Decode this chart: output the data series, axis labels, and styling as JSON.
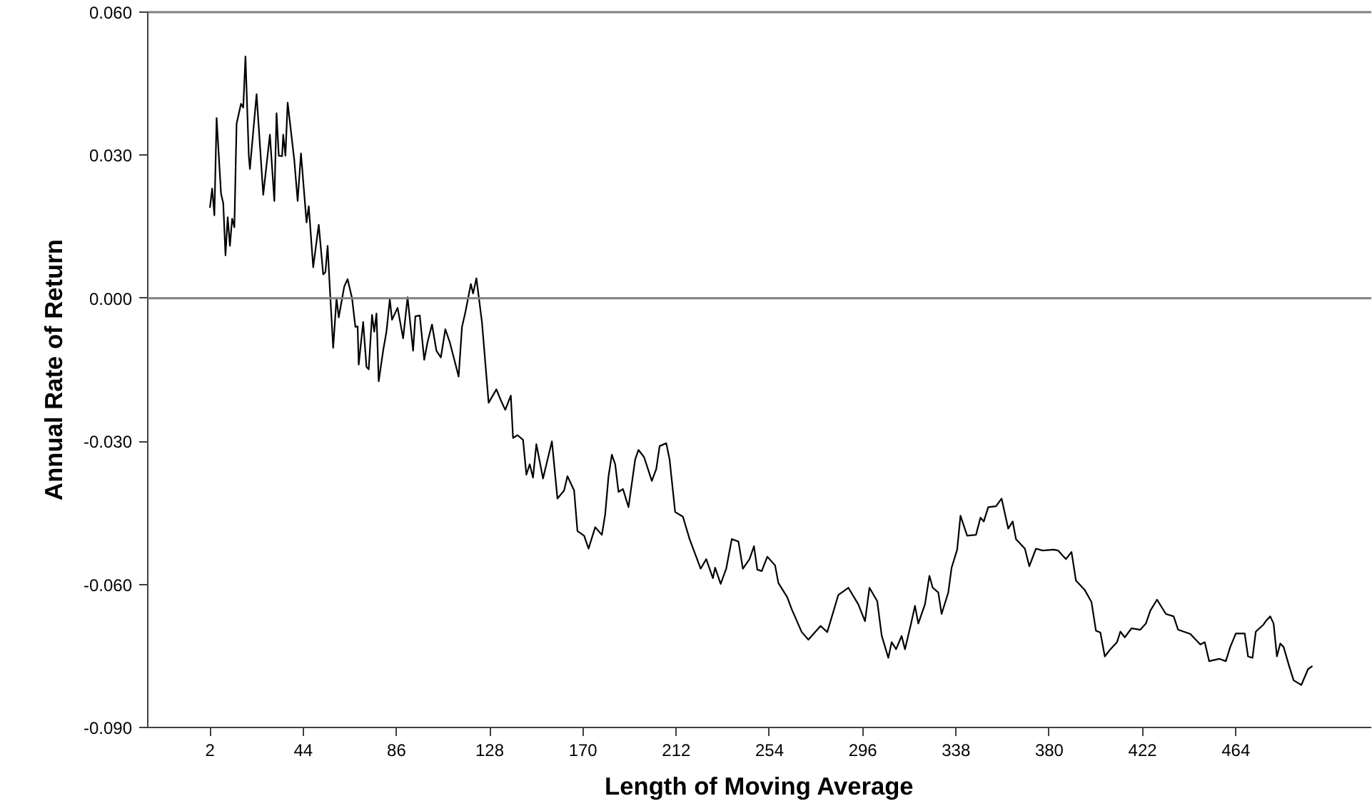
{
  "chart_data": {
    "type": "line",
    "xlabel": "Length of Moving Average",
    "ylabel": "Annual Rate of Return",
    "x": [
      2,
      3,
      4,
      5,
      7,
      8,
      9,
      10,
      11,
      12,
      13,
      14,
      16,
      17,
      18,
      19.5,
      20,
      23,
      26,
      29,
      31,
      32,
      33,
      34.5,
      35,
      36,
      37,
      40,
      41.5,
      43,
      45.5,
      46.5,
      48.5,
      51,
      53,
      54,
      55,
      56,
      57.5,
      59,
      60,
      62.5,
      64,
      66,
      67.5,
      68.5,
      69,
      71,
      72.5,
      73.5,
      75,
      76,
      77,
      78,
      80,
      81.5,
      83,
      84,
      86.5,
      89,
      91,
      93.5,
      94.5,
      96.5,
      98.5,
      100,
      102,
      104,
      106,
      108,
      110,
      114,
      115.5,
      117,
      119.5,
      120.5,
      122,
      124.5,
      127.5,
      131,
      133,
      135,
      137.5,
      138.5,
      140.5,
      143,
      144.5,
      146,
      147.5,
      149,
      152,
      156,
      158.5,
      161.5,
      163,
      166,
      167.5,
      170.5,
      172.5,
      175.5,
      178.5,
      180,
      181.5,
      183,
      184.5,
      186,
      188,
      190.5,
      193.5,
      195,
      197.5,
      201,
      203,
      204.5,
      207.5,
      209,
      211.5,
      215,
      218,
      223,
      225.5,
      228.5,
      229.5,
      232,
      234.5,
      237,
      240,
      242,
      245,
      247,
      248.5,
      250.5,
      253,
      256.5,
      258,
      262,
      264,
      268.5,
      271.5,
      277,
      280,
      285,
      289.5,
      294,
      297,
      299,
      302.5,
      304.5,
      307.5,
      309,
      311,
      313.5,
      315,
      317.5,
      319.5,
      321,
      324,
      326,
      327.5,
      330,
      331.5,
      334.5,
      336,
      338.5,
      340,
      343,
      347,
      349,
      350.5,
      352.5,
      356,
      358.5,
      361.5,
      363.5,
      365,
      369,
      371,
      374,
      377,
      382,
      384,
      387.5,
      390,
      392,
      396,
      399,
      401,
      403,
      405,
      407.5,
      410.5,
      412,
      414,
      417,
      421,
      423.5,
      425.5,
      428.5,
      432.5,
      436,
      438,
      443.5,
      448,
      450,
      452,
      456.5,
      459.5,
      461.5,
      464,
      468,
      469.5,
      471.5,
      473,
      476.5,
      477.5,
      479.5,
      481,
      482.5,
      484,
      485.5,
      488,
      490,
      493.5,
      496.5,
      498.5
    ],
    "values": [
      0.019,
      0.023,
      0.0174,
      0.0378,
      0.0219,
      0.0199,
      0.009,
      0.017,
      0.011,
      0.0167,
      0.0149,
      0.0366,
      0.0408,
      0.04,
      0.0507,
      0.0299,
      0.0271,
      0.0428,
      0.0217,
      0.0343,
      0.0204,
      0.0388,
      0.0299,
      0.0298,
      0.0343,
      0.0299,
      0.041,
      0.0289,
      0.0204,
      0.0304,
      0.0159,
      0.0193,
      0.0065,
      0.0154,
      0.005,
      0.0055,
      0.011,
      0.002,
      -0.0104,
      0.0,
      -0.004,
      0.0025,
      0.004,
      0.0,
      -0.006,
      -0.0059,
      -0.0139,
      -0.005,
      -0.0144,
      -0.0149,
      -0.0035,
      -0.007,
      -0.0032,
      -0.0174,
      -0.011,
      -0.007,
      -0.0002,
      -0.0045,
      -0.002,
      -0.0084,
      0.0002,
      -0.011,
      -0.0038,
      -0.0036,
      -0.0129,
      -0.0092,
      -0.0055,
      -0.011,
      -0.0124,
      -0.0065,
      -0.0092,
      -0.0164,
      -0.006,
      -0.003,
      0.003,
      0.001,
      0.0042,
      -0.005,
      -0.0219,
      -0.0191,
      -0.0214,
      -0.0234,
      -0.0204,
      -0.0293,
      -0.0287,
      -0.0297,
      -0.037,
      -0.0348,
      -0.0376,
      -0.0306,
      -0.0378,
      -0.03,
      -0.042,
      -0.0403,
      -0.0373,
      -0.0403,
      -0.0488,
      -0.0498,
      -0.0525,
      -0.048,
      -0.0496,
      -0.0453,
      -0.0373,
      -0.0328,
      -0.0348,
      -0.0406,
      -0.04,
      -0.0438,
      -0.0338,
      -0.0318,
      -0.0333,
      -0.0383,
      -0.0358,
      -0.031,
      -0.0304,
      -0.0338,
      -0.0448,
      -0.0458,
      -0.0505,
      -0.0567,
      -0.0547,
      -0.0587,
      -0.0565,
      -0.0599,
      -0.0567,
      -0.0505,
      -0.051,
      -0.0567,
      -0.0547,
      -0.052,
      -0.0569,
      -0.0572,
      -0.0542,
      -0.056,
      -0.0597,
      -0.0627,
      -0.0652,
      -0.07,
      -0.0716,
      -0.0687,
      -0.07,
      -0.0622,
      -0.0607,
      -0.0642,
      -0.0677,
      -0.0607,
      -0.0635,
      -0.0707,
      -0.0754,
      -0.0721,
      -0.0736,
      -0.0708,
      -0.0736,
      -0.0687,
      -0.0645,
      -0.0682,
      -0.0642,
      -0.0582,
      -0.0607,
      -0.0617,
      -0.0662,
      -0.0617,
      -0.0565,
      -0.0527,
      -0.0456,
      -0.0498,
      -0.0496,
      -0.046,
      -0.0468,
      -0.0438,
      -0.0436,
      -0.042,
      -0.0483,
      -0.0468,
      -0.0505,
      -0.0525,
      -0.0562,
      -0.0525,
      -0.0529,
      -0.0527,
      -0.0529,
      -0.0547,
      -0.0532,
      -0.0592,
      -0.0612,
      -0.0637,
      -0.0697,
      -0.0701,
      -0.0751,
      -0.0736,
      -0.0721,
      -0.0699,
      -0.0711,
      -0.0692,
      -0.0695,
      -0.0682,
      -0.0655,
      -0.0632,
      -0.0662,
      -0.0667,
      -0.0695,
      -0.0704,
      -0.0726,
      -0.0721,
      -0.0761,
      -0.0756,
      -0.0761,
      -0.0731,
      -0.0703,
      -0.0703,
      -0.0751,
      -0.0754,
      -0.0699,
      -0.0684,
      -0.0677,
      -0.0667,
      -0.0682,
      -0.0751,
      -0.0724,
      -0.0731,
      -0.0771,
      -0.0801,
      -0.0811,
      -0.0778,
      -0.0771
    ],
    "color": "#000000",
    "line_style": "solid",
    "marker": "none",
    "grid": false,
    "xlim": [
      -26,
      525
    ],
    "xticks": [
      2,
      44,
      86,
      128,
      170,
      212,
      254,
      296,
      338,
      380,
      422,
      464
    ],
    "ylim": [
      -0.09,
      0.06
    ],
    "yticks": [
      {
        "value": -0.09,
        "label": "-0.090"
      },
      {
        "value": -0.06,
        "label": "-0.060"
      },
      {
        "value": -0.03,
        "label": "-0.030"
      },
      {
        "value": 0,
        "label": "0.000"
      },
      {
        "value": 0.03,
        "label": "0.030"
      },
      {
        "value": 0.06,
        "label": "0.060"
      }
    ],
    "ref_lines": [
      {
        "axis": "y",
        "value": 0,
        "color": "#808080"
      }
    ]
  }
}
